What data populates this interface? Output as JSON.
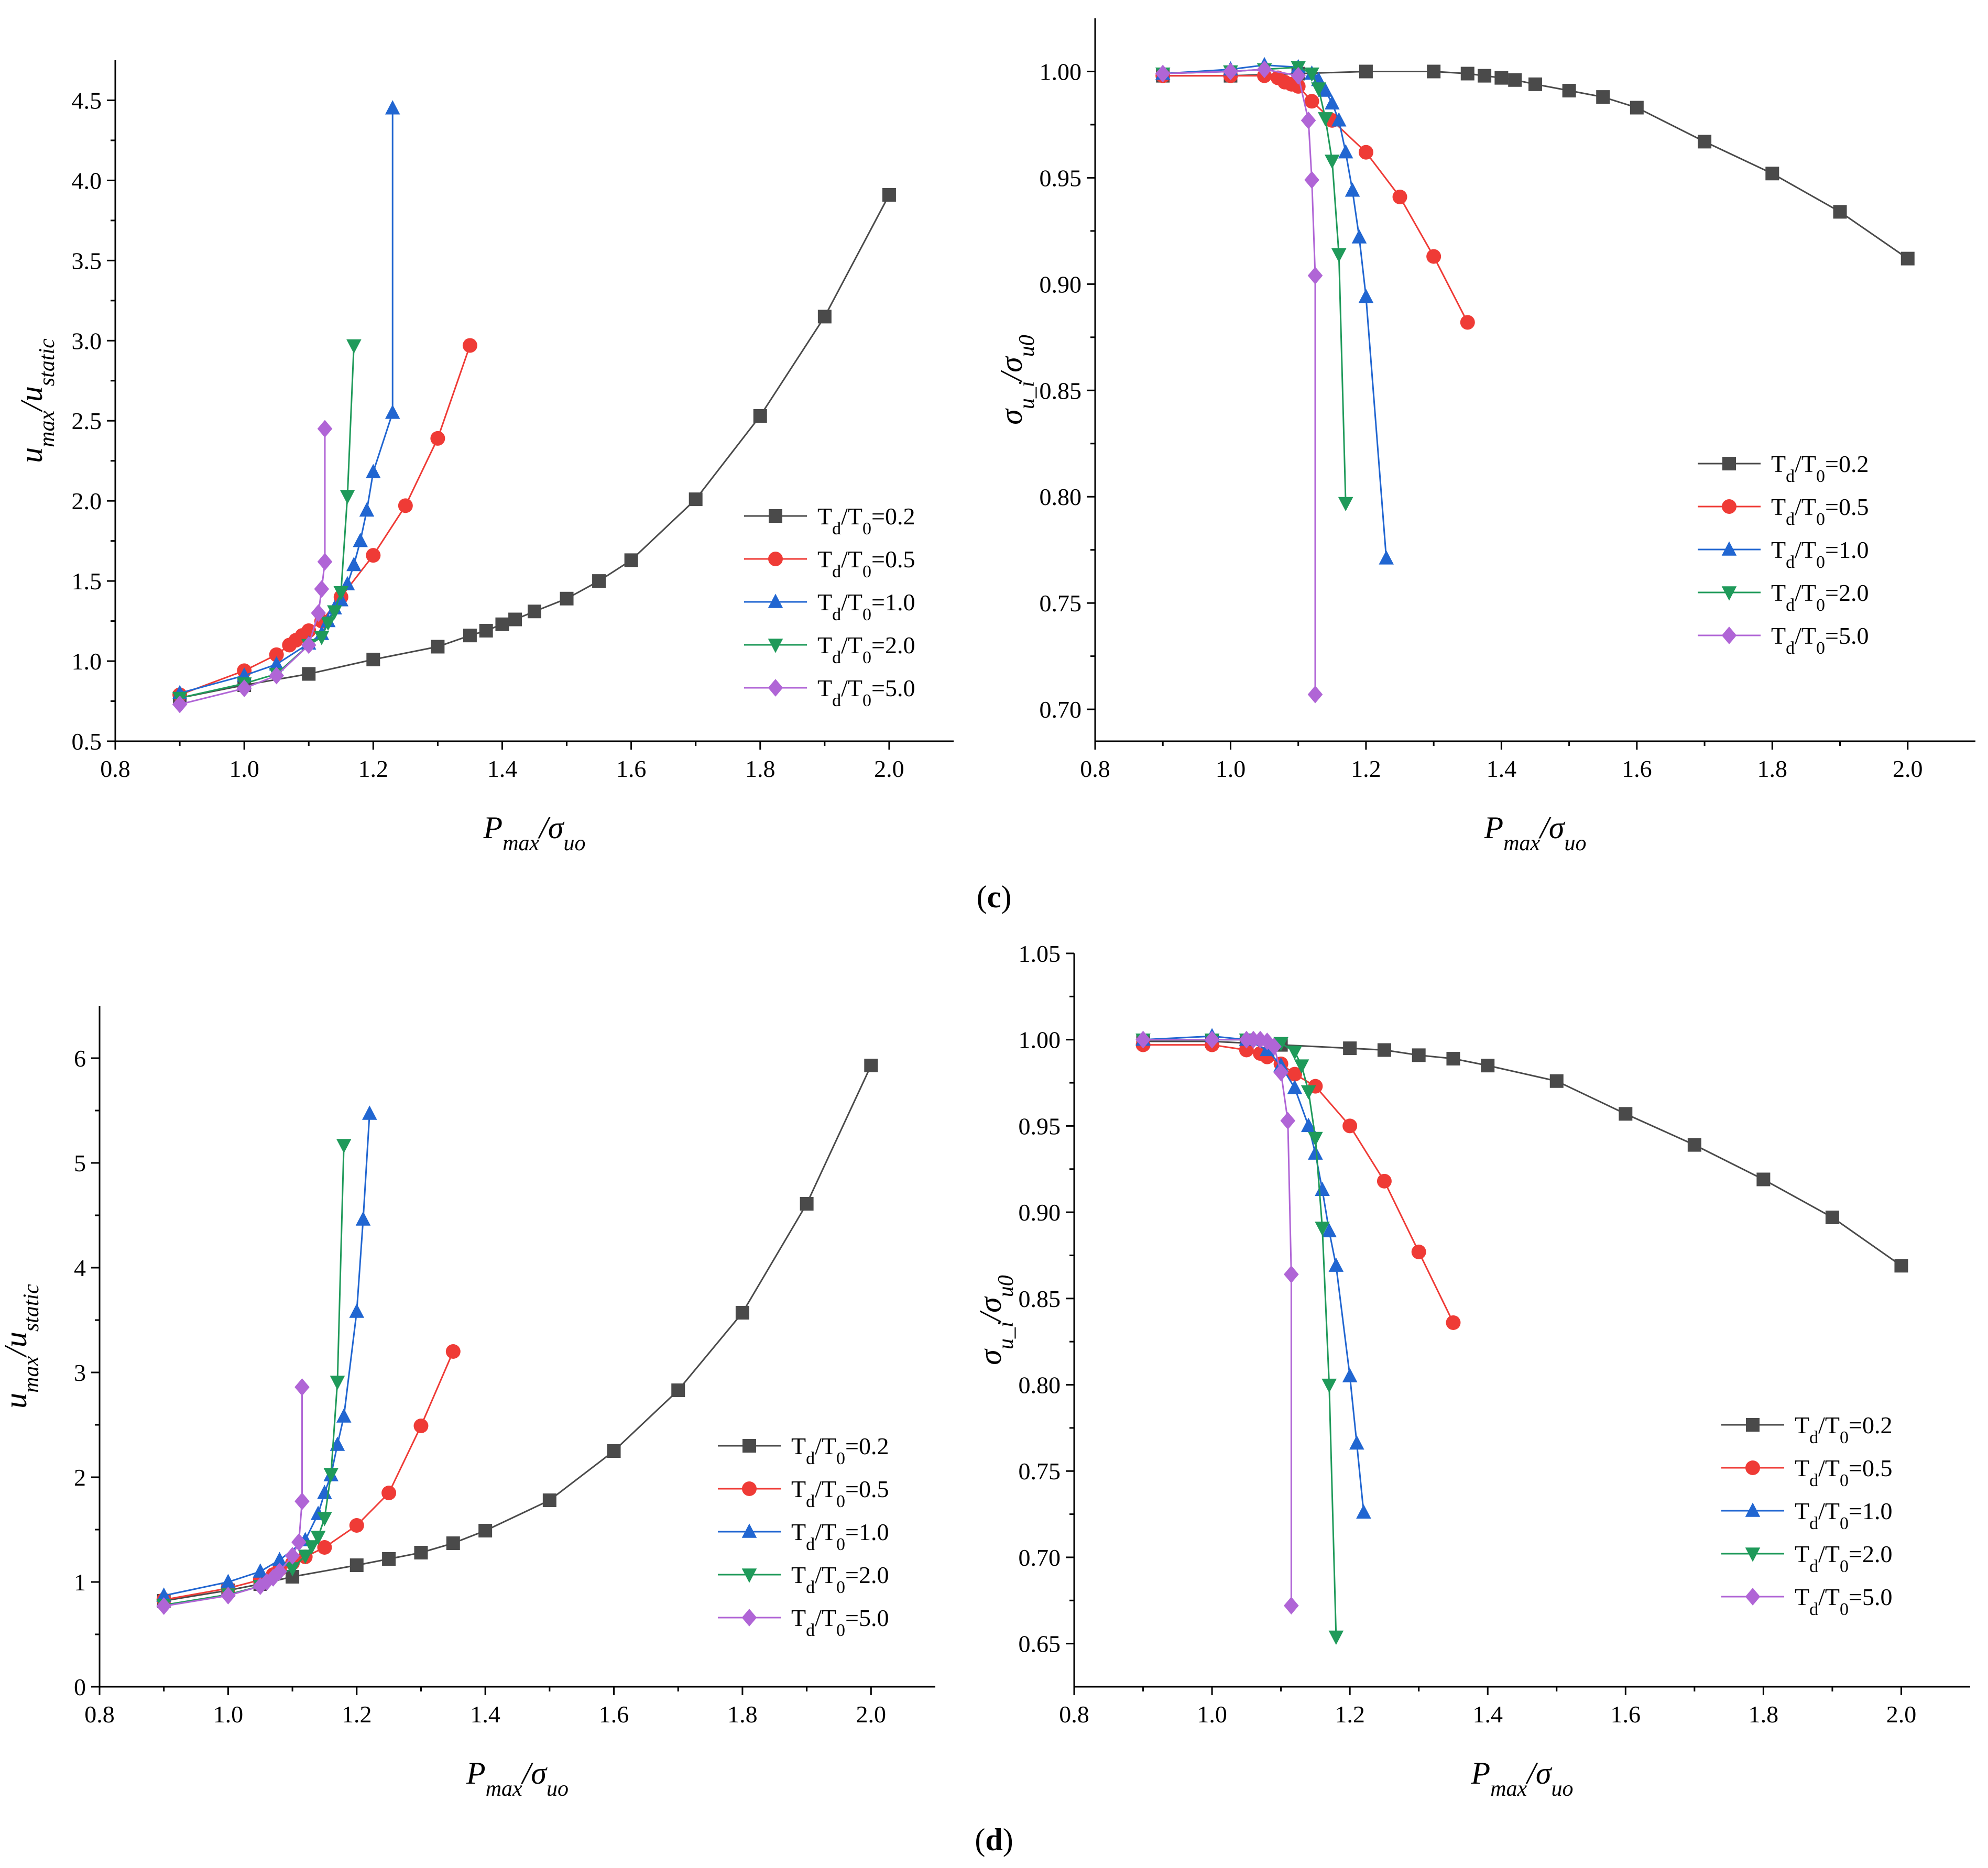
{
  "colors": {
    "Td/T0=0.2": "#4a4a4a",
    "Td/T0=0.5": "#ef3b36",
    "Td/T0=1.0": "#2166d1",
    "Td/T0=2.0": "#1f9a5a",
    "Td/T0=5.0": "#b065d6"
  },
  "panel_labels": {
    "c": {
      "open": "(",
      "letter": "c",
      "close": ")"
    },
    "d": {
      "open": "(",
      "letter": "d",
      "close": ")"
    }
  },
  "chart_data": [
    {
      "id": "c-left",
      "type": "line",
      "xlabel": {
        "main": "P",
        "sub": "max",
        "sep": "/σ",
        "sub2": "uo"
      },
      "ylabel": {
        "main": "u",
        "sub": "max",
        "sep": "/u",
        "sub2": "static"
      },
      "xlim": [
        0.8,
        2.1
      ],
      "ylim": [
        0.5,
        4.75
      ],
      "xticks": [
        "0.8",
        "1.0",
        "1.2",
        "1.4",
        "1.6",
        "1.8",
        "2.0"
      ],
      "yticks": [
        "0.5",
        "1.0",
        "1.5",
        "2.0",
        "2.5",
        "3.0",
        "3.5",
        "4.0",
        "4.5"
      ],
      "legend_position": "right",
      "series": [
        {
          "name": "Td/T0=0.2",
          "label": {
            "a": "T",
            "b": "d",
            "c": "/T",
            "d": "0",
            "e": "=0.2"
          },
          "marker": "square",
          "x": [
            0.9,
            1.0,
            1.1,
            1.2,
            1.3,
            1.35,
            1.375,
            1.4,
            1.42,
            1.45,
            1.5,
            1.55,
            1.6,
            1.7,
            1.8,
            1.9,
            2.0
          ],
          "y": [
            0.77,
            0.85,
            0.92,
            1.01,
            1.09,
            1.16,
            1.19,
            1.23,
            1.26,
            1.31,
            1.39,
            1.5,
            1.63,
            2.01,
            2.53,
            3.15,
            3.91
          ]
        },
        {
          "name": "Td/T0=0.5",
          "label": {
            "a": "T",
            "b": "d",
            "c": "/T",
            "d": "0",
            "e": "=0.5"
          },
          "marker": "circle",
          "x": [
            0.9,
            1.0,
            1.05,
            1.07,
            1.08,
            1.09,
            1.1,
            1.12,
            1.15,
            1.2,
            1.25,
            1.3,
            1.35
          ],
          "y": [
            0.79,
            0.94,
            1.04,
            1.1,
            1.13,
            1.16,
            1.19,
            1.25,
            1.4,
            1.66,
            1.97,
            2.39,
            2.97
          ]
        },
        {
          "name": "Td/T0=1.0",
          "label": {
            "a": "T",
            "b": "d",
            "c": "/T",
            "d": "0",
            "e": "=1.0"
          },
          "marker": "triangle-up",
          "x": [
            0.9,
            1.0,
            1.05,
            1.1,
            1.12,
            1.13,
            1.14,
            1.15,
            1.16,
            1.17,
            1.18,
            1.19,
            1.2,
            1.23
          ],
          "y": [
            0.8,
            0.91,
            0.98,
            1.11,
            1.17,
            1.25,
            1.33,
            1.38,
            1.48,
            1.6,
            1.75,
            1.94,
            2.18,
            2.55
          ],
          "x_extra": [
            1.23
          ],
          "y_extra": [
            4.45
          ]
        },
        {
          "name": "Td/T0=2.0",
          "label": {
            "a": "T",
            "b": "d",
            "c": "/T",
            "d": "0",
            "e": "=2.0"
          },
          "marker": "triangle-down",
          "x": [
            0.9,
            1.0,
            1.05,
            1.1,
            1.12,
            1.13,
            1.14,
            1.15,
            1.16,
            1.17
          ],
          "y": [
            0.77,
            0.86,
            0.92,
            1.1,
            1.15,
            1.24,
            1.31,
            1.43,
            2.03,
            2.97
          ]
        },
        {
          "name": "Td/T0=5.0",
          "label": {
            "a": "T",
            "b": "d",
            "c": "/T",
            "d": "0",
            "e": "=5.0"
          },
          "marker": "diamond",
          "x": [
            0.9,
            1.0,
            1.05,
            1.1,
            1.115,
            1.12,
            1.125
          ],
          "y": [
            0.73,
            0.83,
            0.91,
            1.1,
            1.3,
            1.45,
            1.62
          ],
          "x_extra": [
            1.125
          ],
          "y_extra": [
            2.45
          ]
        }
      ]
    },
    {
      "id": "c-right",
      "type": "line",
      "xlabel": {
        "main": "P",
        "sub": "max",
        "sep": "/σ",
        "sub2": "uo"
      },
      "ylabel": {
        "main": "σ",
        "sub": "u_i",
        "sep": "/σ",
        "sub2": "u0"
      },
      "xlim": [
        0.8,
        2.1
      ],
      "ylim": [
        0.685,
        1.025
      ],
      "xticks": [
        "0.8",
        "1.0",
        "1.2",
        "1.4",
        "1.6",
        "1.8",
        "2.0"
      ],
      "yticks": [
        "0.70",
        "0.75",
        "0.80",
        "0.85",
        "0.90",
        "0.95",
        "1.00"
      ],
      "legend_position": "right",
      "series": [
        {
          "name": "Td/T0=0.2",
          "label": {
            "a": "T",
            "b": "d",
            "c": "/T",
            "d": "0",
            "e": "=0.2"
          },
          "marker": "square",
          "x": [
            0.9,
            1.0,
            1.1,
            1.2,
            1.3,
            1.35,
            1.375,
            1.4,
            1.42,
            1.45,
            1.5,
            1.55,
            1.6,
            1.7,
            1.8,
            1.9,
            2.0
          ],
          "y": [
            0.998,
            0.998,
            0.999,
            1.0,
            1.0,
            0.999,
            0.998,
            0.997,
            0.996,
            0.994,
            0.991,
            0.988,
            0.983,
            0.967,
            0.952,
            0.934,
            0.912
          ]
        },
        {
          "name": "Td/T0=0.5",
          "label": {
            "a": "T",
            "b": "d",
            "c": "/T",
            "d": "0",
            "e": "=0.5"
          },
          "marker": "circle",
          "x": [
            0.9,
            1.0,
            1.05,
            1.07,
            1.08,
            1.09,
            1.1,
            1.12,
            1.15,
            1.2,
            1.25,
            1.3,
            1.35
          ],
          "y": [
            0.998,
            0.998,
            0.998,
            0.997,
            0.995,
            0.994,
            0.993,
            0.986,
            0.977,
            0.962,
            0.941,
            0.913,
            0.882
          ]
        },
        {
          "name": "Td/T0=1.0",
          "label": {
            "a": "T",
            "b": "d",
            "c": "/T",
            "d": "0",
            "e": "=1.0"
          },
          "marker": "triangle-up",
          "x": [
            0.9,
            1.0,
            1.05,
            1.1,
            1.12,
            1.13,
            1.14,
            1.15,
            1.16,
            1.17,
            1.18,
            1.19,
            1.2,
            1.23
          ],
          "y": [
            0.999,
            1.001,
            1.003,
            1.002,
            0.999,
            0.996,
            0.991,
            0.985,
            0.977,
            0.962,
            0.944,
            0.922,
            0.894,
            0.771
          ]
        },
        {
          "name": "Td/T0=2.0",
          "label": {
            "a": "T",
            "b": "d",
            "c": "/T",
            "d": "0",
            "e": "=2.0"
          },
          "marker": "triangle-down",
          "x": [
            0.9,
            1.0,
            1.05,
            1.1,
            1.12,
            1.13,
            1.14,
            1.15,
            1.16,
            1.17
          ],
          "y": [
            0.999,
            1.0,
            1.001,
            1.002,
            0.999,
            0.992,
            0.978,
            0.958,
            0.914,
            0.797
          ]
        },
        {
          "name": "Td/T0=5.0",
          "label": {
            "a": "T",
            "b": "d",
            "c": "/T",
            "d": "0",
            "e": "=5.0"
          },
          "marker": "diamond",
          "x": [
            0.9,
            1.0,
            1.05,
            1.1,
            1.115,
            1.12,
            1.125,
            1.125
          ],
          "y": [
            0.999,
            1.0,
            1.001,
            0.998,
            0.977,
            0.949,
            0.904,
            0.707
          ]
        }
      ]
    },
    {
      "id": "d-left",
      "type": "line",
      "xlabel": {
        "main": "P",
        "sub": "max",
        "sep": "/σ",
        "sub2": "uo"
      },
      "ylabel": {
        "main": "u",
        "sub": "max",
        "sep": "/u",
        "sub2": "static"
      },
      "xlim": [
        0.8,
        2.1
      ],
      "ylim": [
        0,
        6.5
      ],
      "xticks": [
        "0.8",
        "1.0",
        "1.2",
        "1.4",
        "1.6",
        "1.8",
        "2.0"
      ],
      "yticks": [
        "0",
        "1",
        "2",
        "3",
        "4",
        "5",
        "6"
      ],
      "legend_position": "right",
      "series": [
        {
          "name": "Td/T0=0.2",
          "label": {
            "a": "T",
            "b": "d",
            "c": "/T",
            "d": "0",
            "e": "=0.2"
          },
          "marker": "square",
          "x": [
            0.9,
            1.0,
            1.05,
            1.1,
            1.2,
            1.25,
            1.3,
            1.35,
            1.4,
            1.5,
            1.6,
            1.7,
            1.8,
            1.9,
            2.0
          ],
          "y": [
            0.82,
            0.92,
            0.98,
            1.05,
            1.16,
            1.22,
            1.28,
            1.37,
            1.49,
            1.78,
            2.25,
            2.83,
            3.57,
            4.61,
            5.93
          ]
        },
        {
          "name": "Td/T0=0.5",
          "label": {
            "a": "T",
            "b": "d",
            "c": "/T",
            "d": "0",
            "e": "=0.5"
          },
          "marker": "circle",
          "x": [
            0.9,
            1.0,
            1.05,
            1.07,
            1.08,
            1.1,
            1.12,
            1.15,
            1.2,
            1.25,
            1.3,
            1.35
          ],
          "y": [
            0.83,
            0.94,
            1.02,
            1.07,
            1.12,
            1.18,
            1.24,
            1.33,
            1.54,
            1.85,
            2.49,
            3.2
          ]
        },
        {
          "name": "Td/T0=1.0",
          "label": {
            "a": "T",
            "b": "d",
            "c": "/T",
            "d": "0",
            "e": "=1.0"
          },
          "marker": "triangle-up",
          "x": [
            0.9,
            1.0,
            1.05,
            1.08,
            1.12,
            1.14,
            1.15,
            1.16,
            1.17,
            1.18,
            1.2,
            1.21,
            1.22
          ],
          "y": [
            0.87,
            1.0,
            1.1,
            1.21,
            1.4,
            1.65,
            1.85,
            2.02,
            2.31,
            2.58,
            3.58,
            4.46,
            5.47
          ]
        },
        {
          "name": "Td/T0=2.0",
          "label": {
            "a": "T",
            "b": "d",
            "c": "/T",
            "d": "0",
            "e": "=2.0"
          },
          "marker": "triangle-down",
          "x": [
            0.9,
            1.0,
            1.05,
            1.1,
            1.12,
            1.13,
            1.14,
            1.15,
            1.16,
            1.17,
            1.18
          ],
          "y": [
            0.78,
            0.88,
            0.96,
            1.13,
            1.25,
            1.34,
            1.43,
            1.61,
            2.03,
            2.91,
            5.17
          ]
        },
        {
          "name": "Td/T0=5.0",
          "label": {
            "a": "T",
            "b": "d",
            "c": "/T",
            "d": "0",
            "e": "=5.0"
          },
          "marker": "diamond",
          "x": [
            0.9,
            1.0,
            1.05,
            1.06,
            1.07,
            1.08,
            1.1,
            1.11,
            1.115,
            1.115
          ],
          "y": [
            0.77,
            0.87,
            0.96,
            1.0,
            1.04,
            1.1,
            1.25,
            1.38,
            1.77,
            2.86
          ]
        }
      ]
    },
    {
      "id": "d-right",
      "type": "line",
      "xlabel": {
        "main": "P",
        "sub": "max",
        "sep": "/σ",
        "sub2": "uo"
      },
      "ylabel": {
        "main": "σ",
        "sub": "u_i",
        "sep": "/σ",
        "sub2": "u0"
      },
      "xlim": [
        0.8,
        2.1
      ],
      "ylim": [
        0.625,
        1.05
      ],
      "xticks": [
        "0.8",
        "1.0",
        "1.2",
        "1.4",
        "1.6",
        "1.8",
        "2.0"
      ],
      "yticks": [
        "0.65",
        "0.70",
        "0.75",
        "0.80",
        "0.85",
        "0.90",
        "0.95",
        "1.00",
        "1.05"
      ],
      "legend_position": "right",
      "series": [
        {
          "name": "Td/T0=0.2",
          "label": {
            "a": "T",
            "b": "d",
            "c": "/T",
            "d": "0",
            "e": "=0.2"
          },
          "marker": "square",
          "x": [
            0.9,
            1.0,
            1.05,
            1.1,
            1.2,
            1.25,
            1.3,
            1.35,
            1.4,
            1.5,
            1.6,
            1.7,
            1.8,
            1.9,
            2.0
          ],
          "y": [
            0.999,
            0.999,
            0.998,
            0.997,
            0.995,
            0.994,
            0.991,
            0.989,
            0.985,
            0.976,
            0.957,
            0.939,
            0.919,
            0.897,
            0.869
          ]
        },
        {
          "name": "Td/T0=0.5",
          "label": {
            "a": "T",
            "b": "d",
            "c": "/T",
            "d": "0",
            "e": "=0.5"
          },
          "marker": "circle",
          "x": [
            0.9,
            1.0,
            1.05,
            1.07,
            1.08,
            1.1,
            1.12,
            1.15,
            1.2,
            1.25,
            1.3,
            1.35
          ],
          "y": [
            0.997,
            0.997,
            0.994,
            0.992,
            0.99,
            0.986,
            0.98,
            0.973,
            0.95,
            0.918,
            0.877,
            0.836
          ]
        },
        {
          "name": "Td/T0=1.0",
          "label": {
            "a": "T",
            "b": "d",
            "c": "/T",
            "d": "0",
            "e": "=1.0"
          },
          "marker": "triangle-up",
          "x": [
            0.9,
            1.0,
            1.05,
            1.08,
            1.1,
            1.12,
            1.14,
            1.15,
            1.16,
            1.17,
            1.18,
            1.2,
            1.21,
            1.22
          ],
          "y": [
            1.0,
            1.002,
            1.0,
            0.994,
            0.985,
            0.972,
            0.95,
            0.934,
            0.913,
            0.889,
            0.869,
            0.805,
            0.766,
            0.726
          ]
        },
        {
          "name": "Td/T0=2.0",
          "label": {
            "a": "T",
            "b": "d",
            "c": "/T",
            "d": "0",
            "e": "=2.0"
          },
          "marker": "triangle-down",
          "x": [
            0.9,
            1.0,
            1.05,
            1.1,
            1.12,
            1.13,
            1.14,
            1.15,
            1.16,
            1.17,
            1.18
          ],
          "y": [
            1.0,
            1.0,
            1.0,
            0.998,
            0.993,
            0.985,
            0.97,
            0.943,
            0.891,
            0.8,
            0.654
          ]
        },
        {
          "name": "Td/T0=5.0",
          "label": {
            "a": "T",
            "b": "d",
            "c": "/T",
            "d": "0",
            "e": "=5.0"
          },
          "marker": "diamond",
          "x": [
            0.9,
            1.0,
            1.05,
            1.06,
            1.07,
            1.08,
            1.09,
            1.1,
            1.11,
            1.115,
            1.115
          ],
          "y": [
            1.0,
            1.0,
            1.0,
            1.0,
            1.0,
            0.999,
            0.996,
            0.981,
            0.953,
            0.864,
            0.672
          ]
        }
      ]
    }
  ]
}
